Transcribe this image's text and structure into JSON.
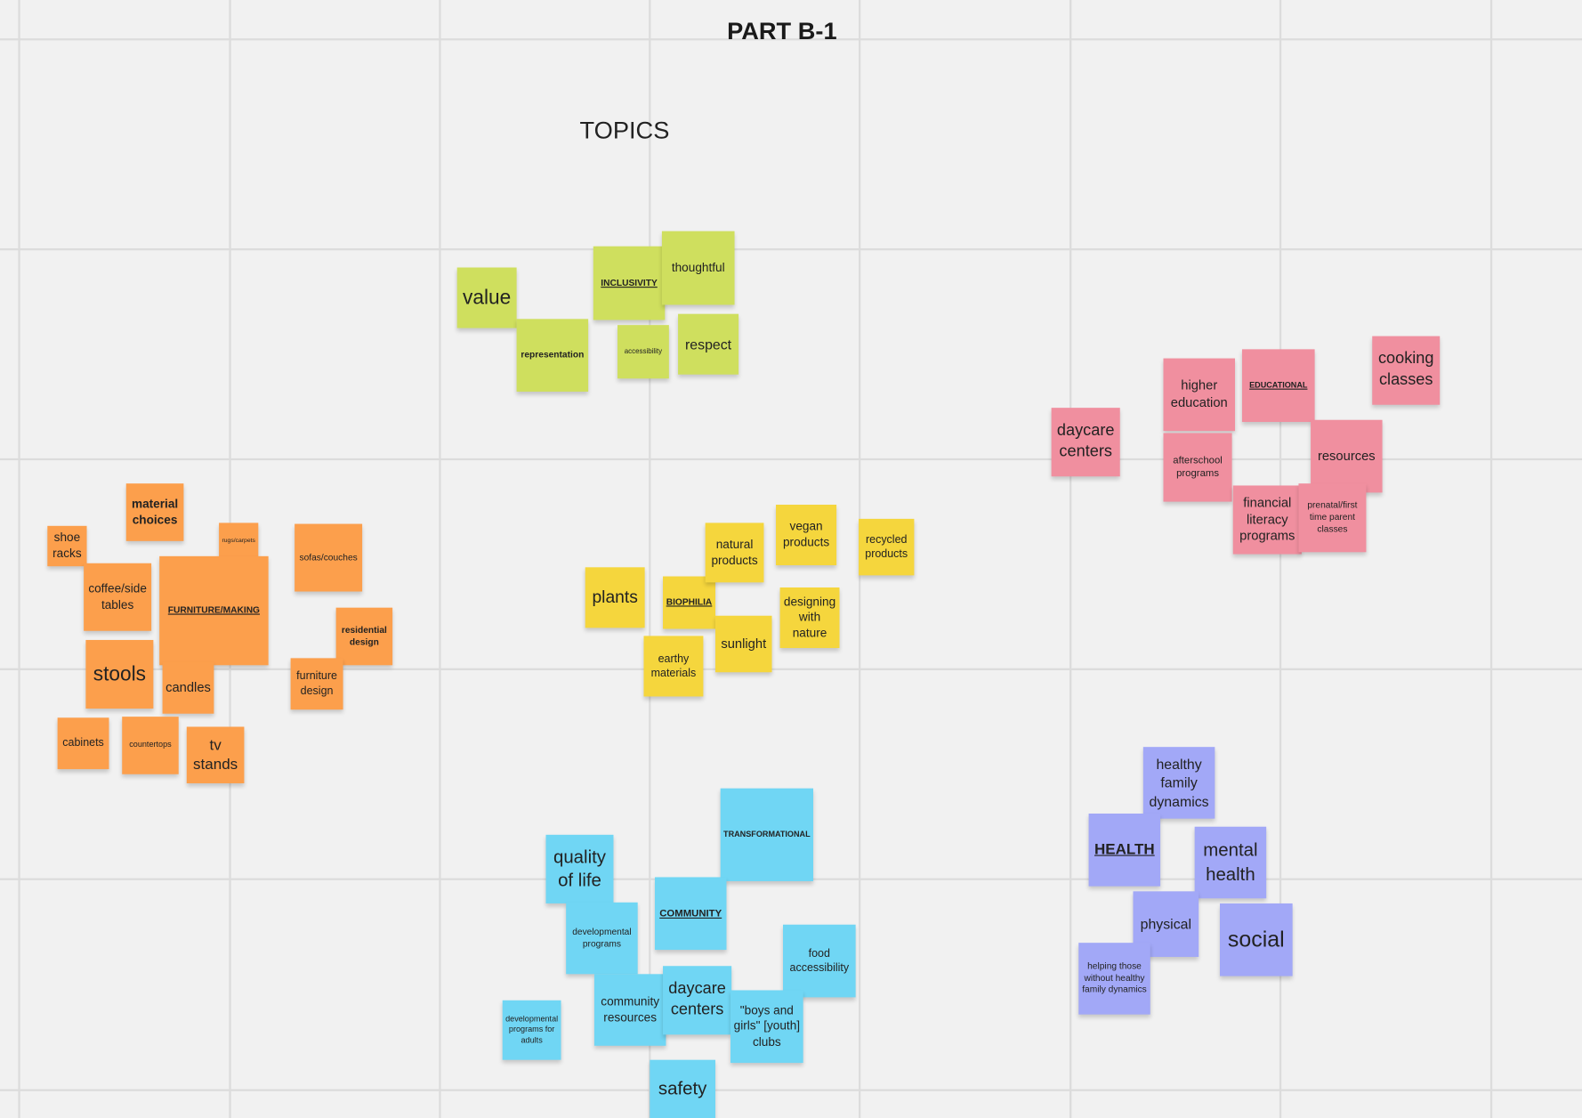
{
  "header": {
    "title": "PART B-1",
    "subtitle": "TOPICS"
  },
  "clusters": [
    {
      "color": "#cfdf5e",
      "notes": [
        "value",
        "representation",
        "INCLUSIVITY",
        "thoughtful",
        "accessibility",
        "respect"
      ]
    },
    {
      "color": "#f5d63d",
      "notes": [
        "plants",
        "BIOPHILIA",
        "natural products",
        "vegan products",
        "recycled products",
        "designing with nature",
        "sunlight",
        "earthy materials"
      ]
    },
    {
      "color": "#fc9f4c",
      "notes": [
        "material choices",
        "shoe racks",
        "rugs/carpets",
        "sofas/couches",
        "coffee/side tables",
        "FURNITURE/MAKING",
        "residential design",
        "stools",
        "candles",
        "furniture design",
        "cabinets",
        "countertops",
        "tv stands"
      ]
    },
    {
      "color": "#f08f9f",
      "notes": [
        "daycare centers",
        "higher education",
        "EDUCATIONAL",
        "cooking classes",
        "afterschool programs",
        "resources",
        "financial literacy programs",
        "prenatal/first time parent classes"
      ]
    },
    {
      "color": "#70d6f4",
      "notes": [
        "TRANSFORMATIONAL",
        "quality of life",
        "COMMUNITY",
        "developmental programs",
        "food accessibility",
        "community resources",
        "daycare centers",
        "\"boys and girls\" [youth] clubs",
        "developmental programs for adults",
        "safety"
      ]
    },
    {
      "color": "#a2a8f7",
      "notes": [
        "healthy family dynamics",
        "HEALTH",
        "mental health",
        "physical",
        "social",
        "helping those without healthy family dynamics"
      ]
    }
  ]
}
